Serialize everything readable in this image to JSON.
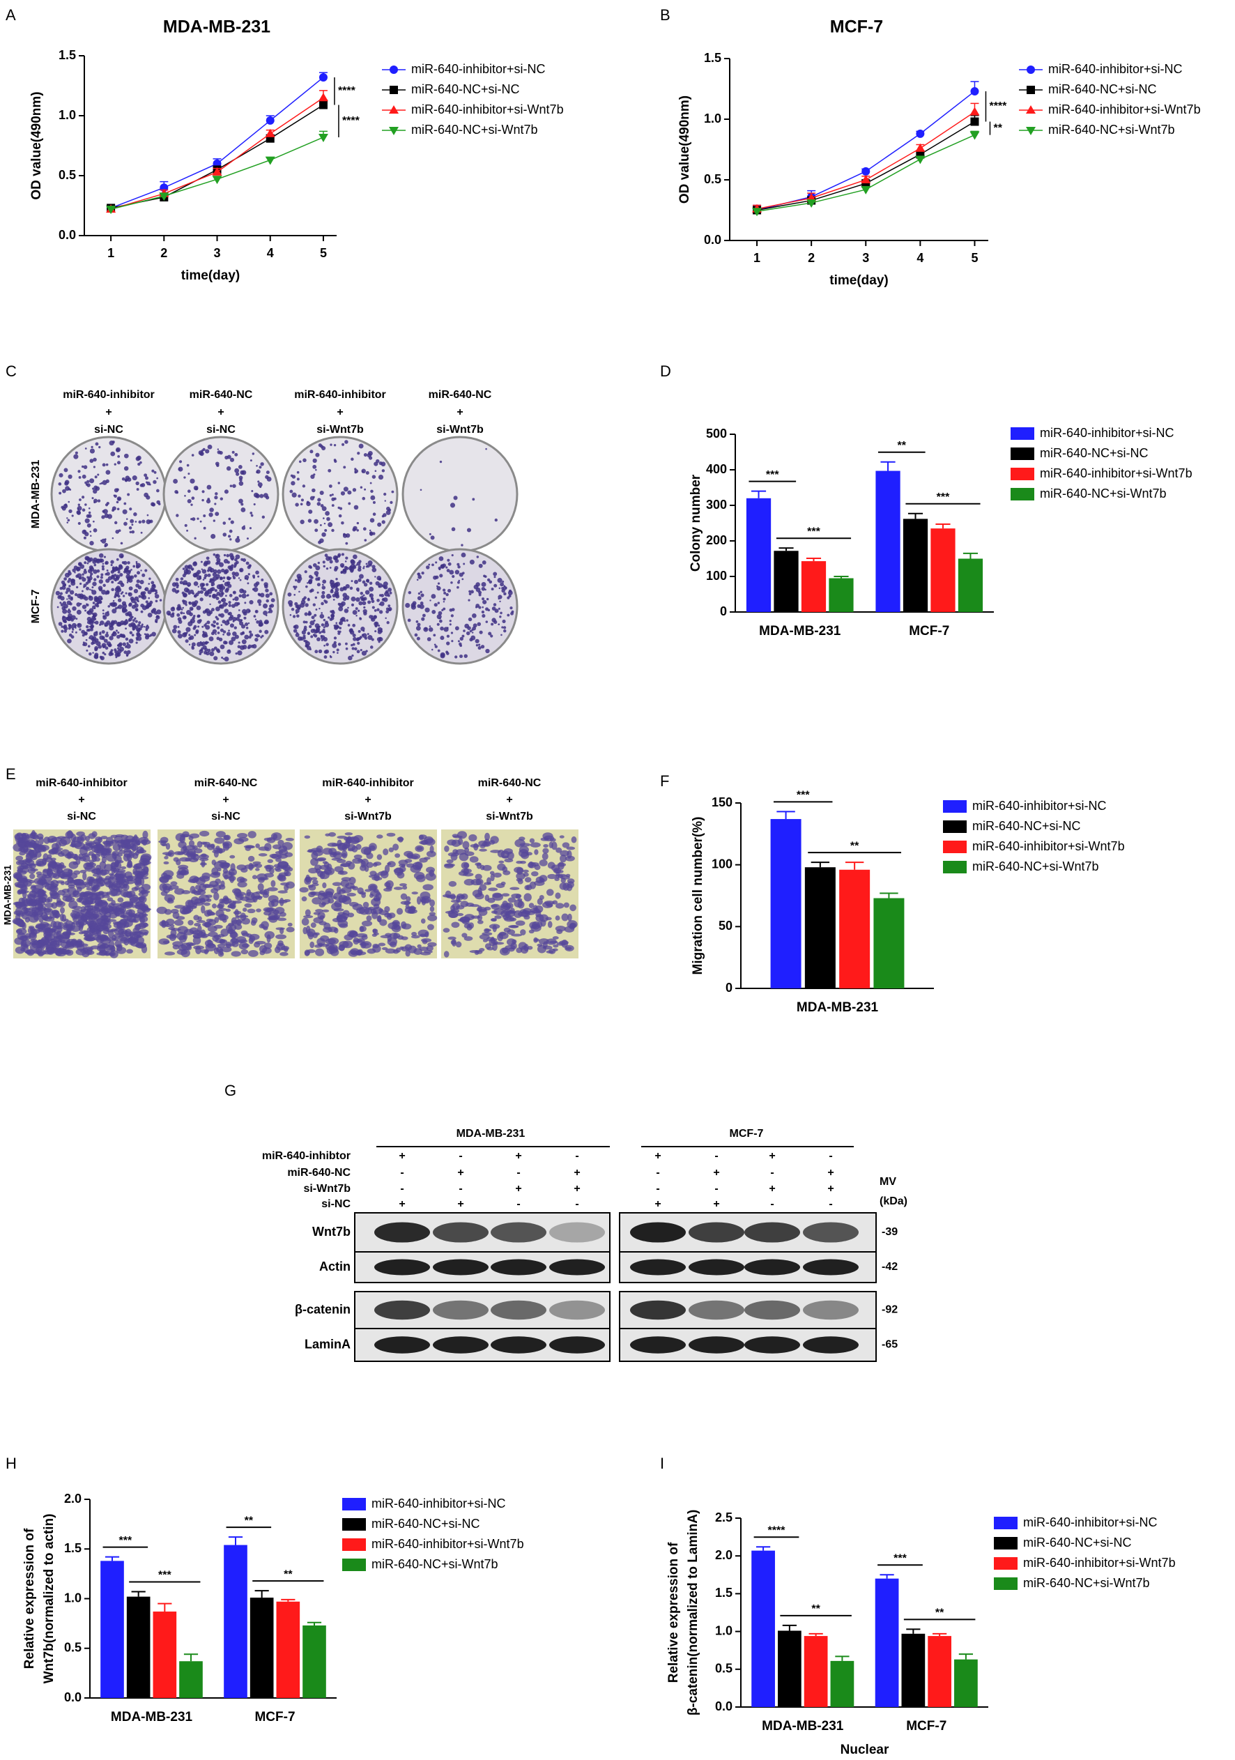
{
  "chart_data": [
    {
      "panel": "A",
      "type": "line",
      "title": "MDA-MB-231",
      "xlabel": "time(day)",
      "ylabel": "OD value(490nm)",
      "x": [
        1,
        2,
        3,
        4,
        5
      ],
      "xlim": [
        0.5,
        5.25
      ],
      "xticks": [
        1,
        2,
        3,
        4,
        5
      ],
      "ylim": [
        0,
        1.5
      ],
      "yticks": [
        {
          "value": 0,
          "label": "0.0"
        },
        0.5,
        {
          "value": 1,
          "label": "1.0"
        },
        1.5
      ],
      "legend": "right",
      "series": [
        {
          "name": "miR-640-inhibitor+si-NC",
          "color": "#1f1fff",
          "marker": "circle",
          "values": [
            0.23,
            0.4,
            0.6,
            0.96,
            1.32
          ],
          "errors": [
            0.02,
            0.05,
            0.04,
            0.04,
            0.04
          ]
        },
        {
          "name": "miR-640-NC+si-NC",
          "color": "#000000",
          "marker": "square",
          "values": [
            0.23,
            0.32,
            0.55,
            0.81,
            1.09
          ],
          "errors": [
            0.02,
            0.02,
            0.03,
            0.03,
            0.04
          ]
        },
        {
          "name": "miR-640-inhibitor+si-Wnt7b",
          "color": "#ff1a1a",
          "marker": "triangle-up",
          "values": [
            0.22,
            0.35,
            0.53,
            0.85,
            1.15
          ],
          "errors": [
            0.02,
            0.03,
            0.03,
            0.03,
            0.06
          ]
        },
        {
          "name": "miR-640-NC+si-Wnt7b",
          "color": "#22a022",
          "marker": "triangle-down",
          "values": [
            0.22,
            0.33,
            0.47,
            0.63,
            0.82
          ],
          "errors": [
            0.02,
            0.02,
            0.02,
            0.02,
            0.05
          ]
        }
      ],
      "annotations": [
        "****",
        "****"
      ]
    },
    {
      "panel": "B",
      "type": "line",
      "title": "MCF-7",
      "xlabel": "time(day)",
      "ylabel": "OD value(490nm)",
      "x": [
        1,
        2,
        3,
        4,
        5
      ],
      "xlim": [
        0.5,
        5.25
      ],
      "xticks": [
        1,
        2,
        3,
        4,
        5
      ],
      "ylim": [
        0,
        1.5
      ],
      "yticks": [
        {
          "value": 0,
          "label": "0.0"
        },
        0.5,
        {
          "value": 1,
          "label": "1.0"
        },
        1.5
      ],
      "legend": "right",
      "series": [
        {
          "name": "miR-640-inhibitor+si-NC",
          "color": "#1f1fff",
          "marker": "circle",
          "values": [
            0.25,
            0.36,
            0.57,
            0.88,
            1.23
          ],
          "errors": [
            0.04,
            0.05,
            0.02,
            0.02,
            0.08
          ]
        },
        {
          "name": "miR-640-NC+si-NC",
          "color": "#000000",
          "marker": "square",
          "values": [
            0.25,
            0.33,
            0.47,
            0.71,
            0.98
          ],
          "errors": [
            0.03,
            0.03,
            0.03,
            0.03,
            0.05
          ]
        },
        {
          "name": "miR-640-inhibitor+si-Wnt7b",
          "color": "#ff1a1a",
          "marker": "triangle-up",
          "values": [
            0.26,
            0.35,
            0.5,
            0.76,
            1.06
          ],
          "errors": [
            0.03,
            0.04,
            0.03,
            0.03,
            0.07
          ]
        },
        {
          "name": "miR-640-NC+si-Wnt7b",
          "color": "#22a022",
          "marker": "triangle-down",
          "values": [
            0.24,
            0.31,
            0.42,
            0.67,
            0.87
          ],
          "errors": [
            0.02,
            0.02,
            0.02,
            0.02,
            0.03
          ]
        }
      ],
      "annotations": [
        "****",
        "**"
      ]
    },
    {
      "panel": "D",
      "type": "bar",
      "ylabel": "Colony number",
      "categories": [
        "MDA-MB-231",
        "MCF-7"
      ],
      "ylim": [
        0,
        500
      ],
      "yticks": [
        0,
        100,
        200,
        300,
        400,
        500
      ],
      "legend": "right",
      "series": [
        {
          "name": "miR-640-inhibitor+si-NC",
          "color": "#1f1fff",
          "values": [
            320,
            397
          ],
          "errors": [
            20,
            25
          ]
        },
        {
          "name": "miR-640-NC+si-NC",
          "color": "#000000",
          "values": [
            172,
            262
          ],
          "errors": [
            8,
            15
          ]
        },
        {
          "name": "miR-640-inhibitor+si-Wnt7b",
          "color": "#ff1a1a",
          "values": [
            143,
            235
          ],
          "errors": [
            8,
            12
          ]
        },
        {
          "name": "miR-640-NC+si-Wnt7b",
          "color": "#1a8a1a",
          "values": [
            95,
            150
          ],
          "errors": [
            5,
            15
          ]
        }
      ],
      "annotations": [
        "***",
        "***",
        "**",
        "***"
      ]
    },
    {
      "panel": "F",
      "type": "bar",
      "ylabel": "Migration cell number(%)",
      "categories": [
        "MDA-MB-231"
      ],
      "ylim": [
        0,
        150
      ],
      "yticks": [
        0,
        50,
        100,
        150
      ],
      "legend": "right",
      "series": [
        {
          "name": "miR-640-inhibitor+si-NC",
          "color": "#1f1fff",
          "values": [
            137
          ],
          "errors": [
            6
          ]
        },
        {
          "name": "miR-640-NC+si-NC",
          "color": "#000000",
          "values": [
            98
          ],
          "errors": [
            4
          ]
        },
        {
          "name": "miR-640-inhibitor+si-Wnt7b",
          "color": "#ff1a1a",
          "values": [
            96
          ],
          "errors": [
            6
          ]
        },
        {
          "name": "miR-640-NC+si-Wnt7b",
          "color": "#1a8a1a",
          "values": [
            73
          ],
          "errors": [
            4
          ]
        }
      ],
      "annotations": [
        "***",
        "**"
      ]
    },
    {
      "panel": "H",
      "type": "bar",
      "ylabel": [
        "Relative expression of",
        "Wnt7b(normalized to actin)"
      ],
      "categories": [
        "MDA-MB-231",
        "MCF-7"
      ],
      "ylim": [
        0,
        2
      ],
      "yticks": [
        {
          "value": 0,
          "label": "0.0"
        },
        0.5,
        {
          "value": 1,
          "label": "1.0"
        },
        1.5,
        {
          "value": 2,
          "label": "2.0"
        }
      ],
      "legend": "right",
      "series": [
        {
          "name": "miR-640-inhibitor+si-NC",
          "color": "#1f1fff",
          "values": [
            1.38,
            1.54
          ],
          "errors": [
            0.04,
            0.08
          ]
        },
        {
          "name": "miR-640-NC+si-NC",
          "color": "#000000",
          "values": [
            1.02,
            1.01
          ],
          "errors": [
            0.05,
            0.07
          ]
        },
        {
          "name": "miR-640-inhibitor+si-Wnt7b",
          "color": "#ff1a1a",
          "values": [
            0.87,
            0.97
          ],
          "errors": [
            0.08,
            0.02
          ]
        },
        {
          "name": "miR-640-NC+si-Wnt7b",
          "color": "#1a8a1a",
          "values": [
            0.37,
            0.73
          ],
          "errors": [
            0.07,
            0.03
          ]
        }
      ],
      "annotations": [
        "***",
        "***",
        "**",
        "**"
      ]
    },
    {
      "panel": "I",
      "type": "bar",
      "xlabel": "Nuclear",
      "ylabel": [
        "Relative expression of",
        "β-catenin(normalized to LaminA)"
      ],
      "categories": [
        "MDA-MB-231",
        "MCF-7"
      ],
      "ylim": [
        0,
        2.5
      ],
      "yticks": [
        {
          "value": 0,
          "label": "0.0"
        },
        0.5,
        {
          "value": 1,
          "label": "1.0"
        },
        1.5,
        {
          "value": 2,
          "label": "2.0"
        },
        2.5
      ],
      "legend": "right",
      "series": [
        {
          "name": "miR-640-inhibitor+si-NC",
          "color": "#1f1fff",
          "values": [
            2.07,
            1.7
          ],
          "errors": [
            0.05,
            0.05
          ]
        },
        {
          "name": "miR-640-NC+si-NC",
          "color": "#000000",
          "values": [
            1.01,
            0.97
          ],
          "errors": [
            0.07,
            0.06
          ]
        },
        {
          "name": "miR-640-inhibitor+si-Wnt7b",
          "color": "#ff1a1a",
          "values": [
            0.94,
            0.94
          ],
          "errors": [
            0.03,
            0.03
          ]
        },
        {
          "name": "miR-640-NC+si-Wnt7b",
          "color": "#1a8a1a",
          "values": [
            0.61,
            0.63
          ],
          "errors": [
            0.06,
            0.07
          ]
        }
      ],
      "annotations": [
        "****",
        "**",
        "***",
        "**"
      ]
    }
  ],
  "panels": {
    "C": {
      "letter": "C",
      "columns": [
        [
          "miR-640-inhibitor",
          "+",
          "si-NC"
        ],
        [
          "miR-640-NC",
          "+",
          "si-NC"
        ],
        [
          "miR-640-inhibitor",
          "+",
          "si-Wnt7b"
        ],
        [
          "miR-640-NC",
          "+",
          "si-Wnt7b"
        ]
      ],
      "rows": [
        "MDA-MB-231",
        "MCF-7"
      ]
    },
    "E": {
      "letter": "E",
      "columns": [
        [
          "miR-640-inhibitor",
          "+",
          "si-NC"
        ],
        [
          "miR-640-NC",
          "+",
          "si-NC"
        ],
        [
          "miR-640-inhibitor",
          "+",
          "si-Wnt7b"
        ],
        [
          "miR-640-NC",
          "+",
          "si-Wnt7b"
        ]
      ],
      "rows": [
        "MDA-MB-231"
      ]
    },
    "G": {
      "letter": "G",
      "groups": [
        "MDA-MB-231",
        "MCF-7"
      ],
      "conditions": [
        {
          "label": "miR-640-inhibtor",
          "signs": [
            "+",
            "-",
            "+",
            "-",
            "+",
            "-",
            "+",
            "-"
          ]
        },
        {
          "label": "miR-640-NC",
          "signs": [
            "-",
            "+",
            "-",
            "+",
            "-",
            "+",
            "-",
            "+"
          ]
        },
        {
          "label": "si-Wnt7b",
          "signs": [
            "-",
            "-",
            "+",
            "+",
            "-",
            "-",
            "+",
            "+"
          ]
        },
        {
          "label": "si-NC",
          "signs": [
            "+",
            "+",
            "-",
            "-",
            "+",
            "+",
            "-",
            "-"
          ]
        }
      ],
      "mw_label": [
        "MV",
        "(kDa)"
      ],
      "blots": [
        {
          "label": "Wnt7b",
          "kda": "-39"
        },
        {
          "label": "Actin",
          "kda": "-42"
        },
        {
          "label": "β-catenin",
          "kda": "-92"
        },
        {
          "label": "LaminA",
          "kda": "-65"
        }
      ]
    }
  }
}
